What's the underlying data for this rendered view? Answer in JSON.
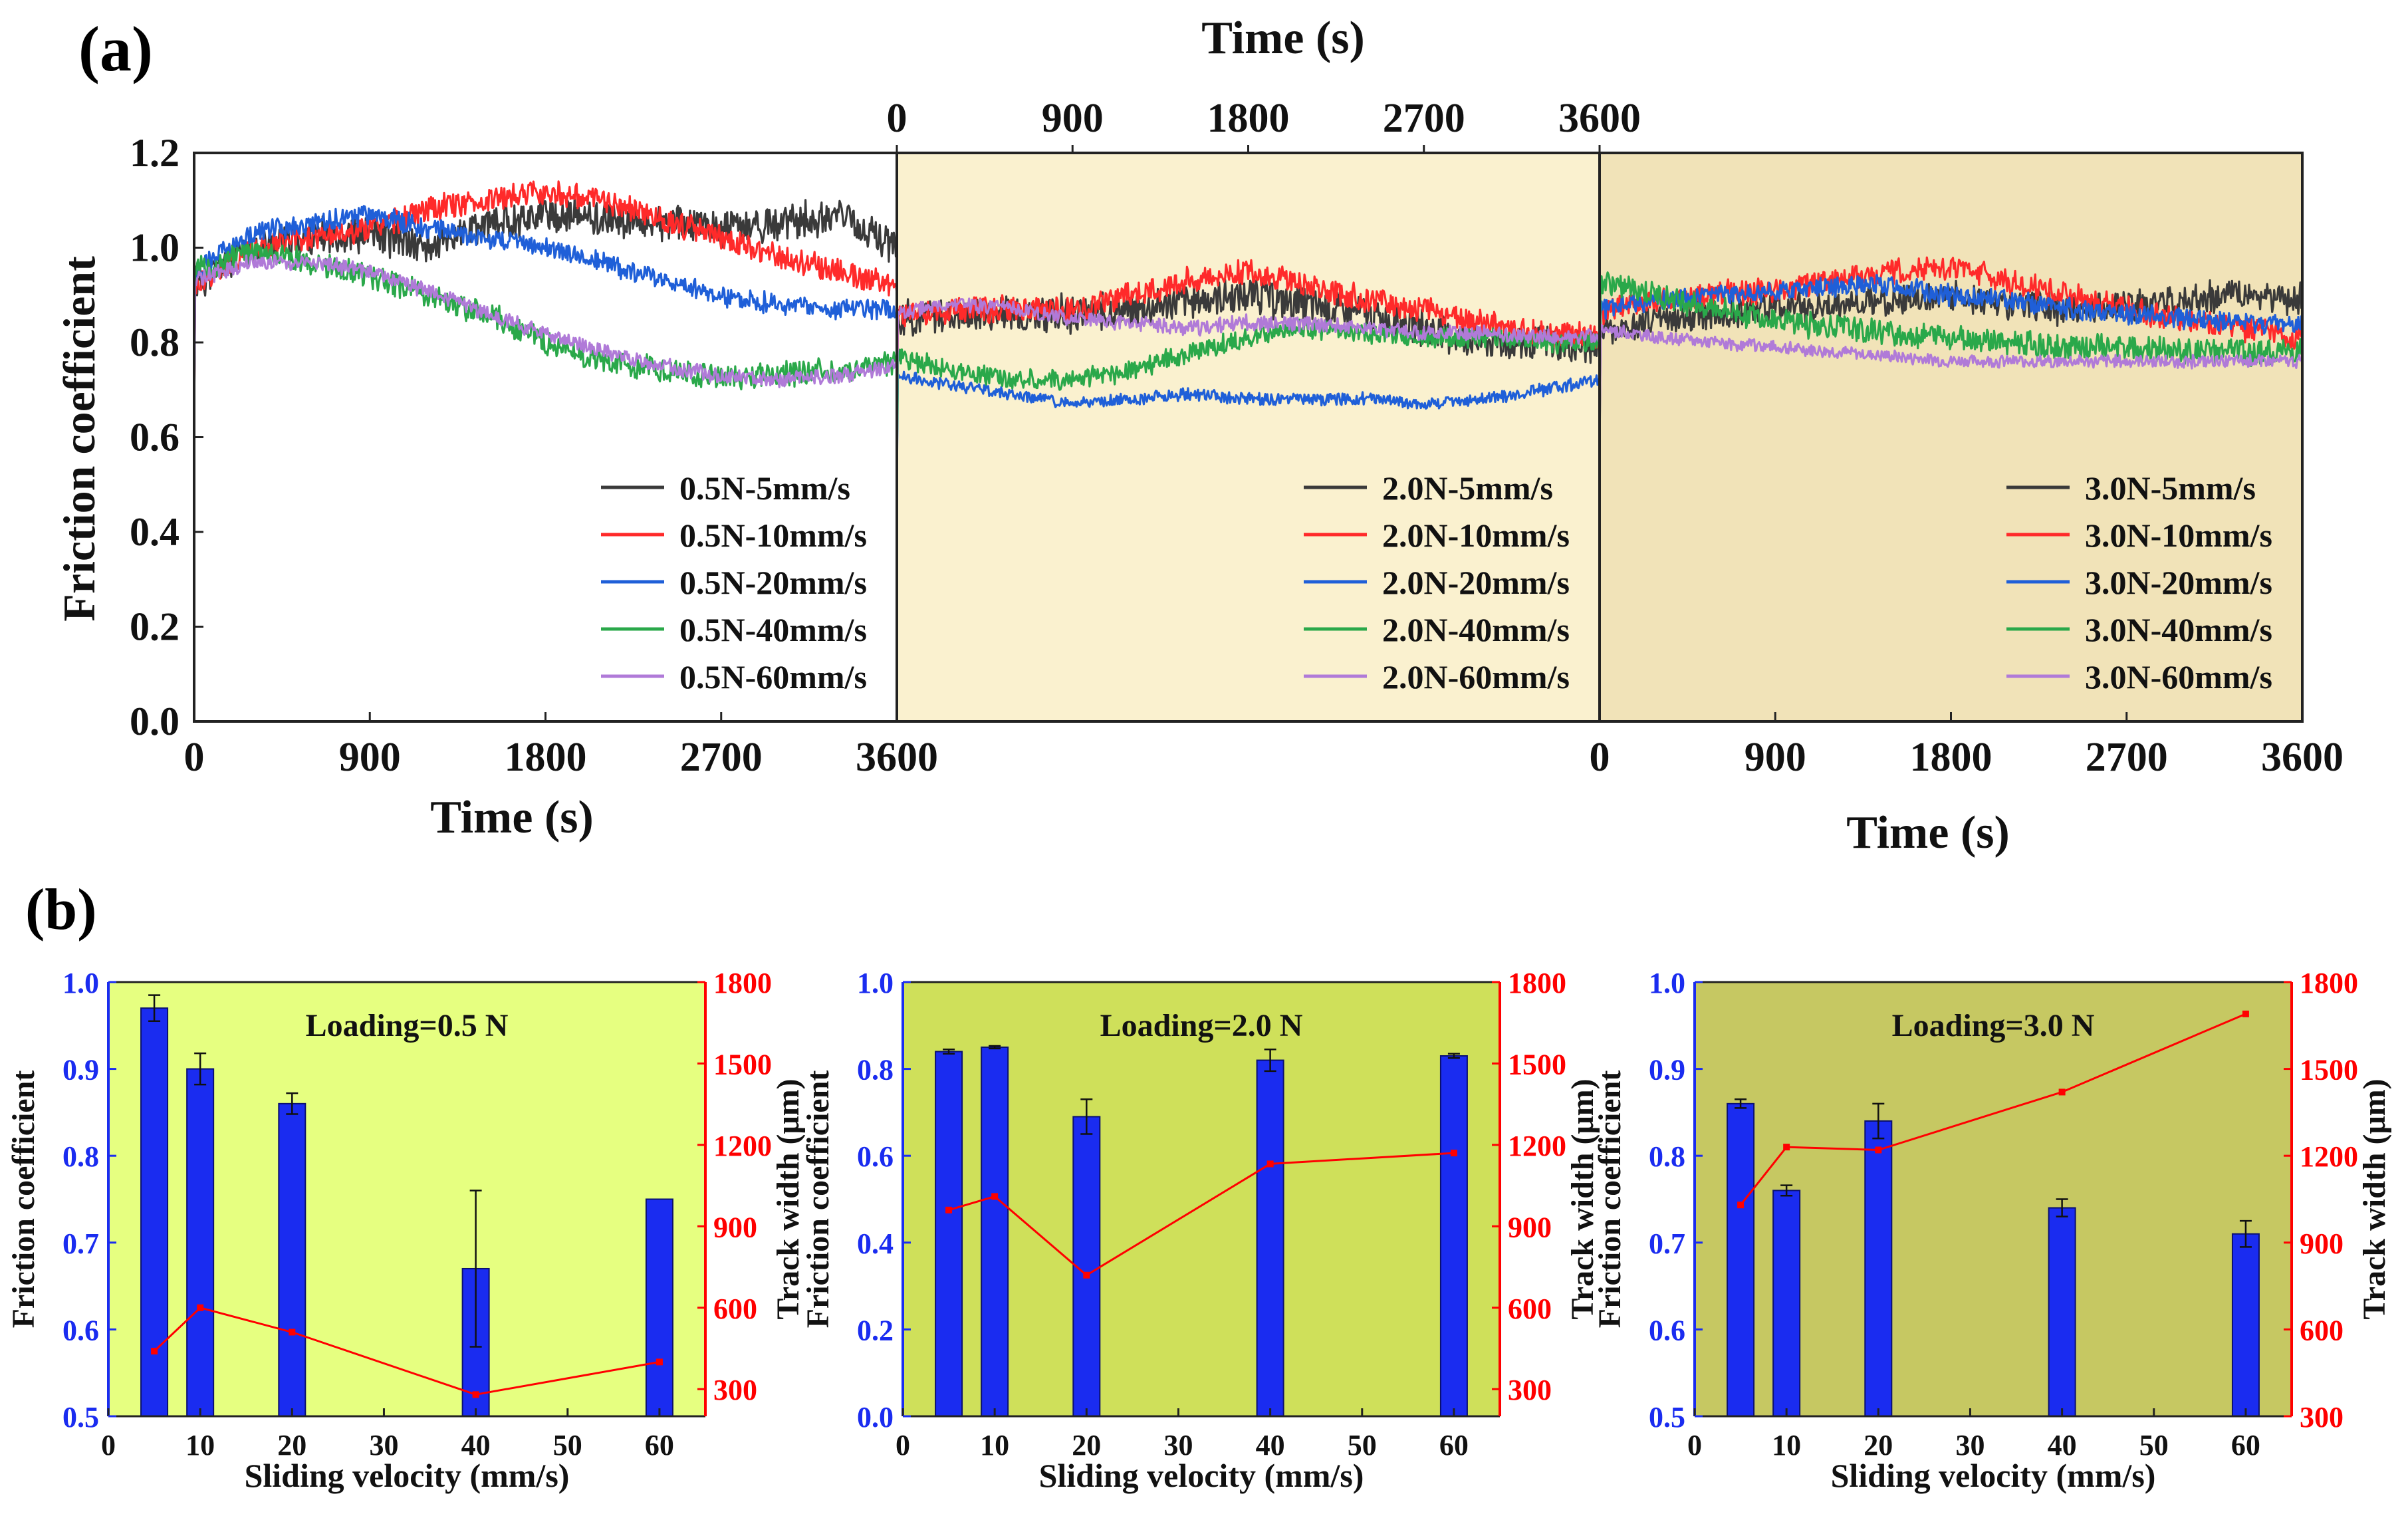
{
  "panel_labels": {
    "a": "(a)",
    "b": "(b)"
  },
  "colors": {
    "black": "#3a3a3a",
    "red": "#ff2a2a",
    "blue": "#1f5fd8",
    "green": "#2aa84a",
    "purple": "#b07ad8",
    "bar_blue": "#1a2cf0",
    "line_red": "#ff0000",
    "axis_blue": "#1a2cf0",
    "axis_red": "#ff0000",
    "a_bg2": "#faf1cf",
    "a_bg3": "#f1e3b8",
    "b_bg1": "#e6ff80",
    "b_bg2": "#cfe05a",
    "b_bg3": "#c6c862"
  },
  "chart_data": [
    {
      "id": "a1",
      "type": "line",
      "title": "",
      "xlabel": "Time (s)",
      "ylabel": "Friction coefficient",
      "xlim": [
        0,
        3600
      ],
      "ylim": [
        0,
        1.2
      ],
      "xticks": [
        "0",
        "900",
        "1800",
        "2700",
        "3600"
      ],
      "yticks": [
        "0.0",
        "0.2",
        "0.4",
        "0.6",
        "0.8",
        "1.0",
        "1.2"
      ],
      "legend_position": "bottom-right",
      "x": [
        0,
        300,
        600,
        900,
        1200,
        1500,
        1800,
        2100,
        2400,
        2700,
        3000,
        3300,
        3600
      ],
      "series": [
        {
          "name": "0.5N-5mm/s",
          "color": "black",
          "noise": 0.035,
          "values": [
            0.92,
            1.0,
            1.02,
            1.03,
            1.0,
            1.05,
            1.07,
            1.06,
            1.05,
            1.04,
            1.05,
            1.07,
            1.0
          ]
        },
        {
          "name": "0.5N-10mm/s",
          "color": "red",
          "noise": 0.025,
          "values": [
            0.92,
            1.0,
            1.02,
            1.04,
            1.08,
            1.1,
            1.12,
            1.1,
            1.06,
            1.02,
            0.98,
            0.95,
            0.92
          ]
        },
        {
          "name": "0.5N-20mm/s",
          "color": "blue",
          "noise": 0.02,
          "values": [
            0.95,
            1.03,
            1.05,
            1.07,
            1.04,
            1.02,
            1.0,
            0.97,
            0.93,
            0.9,
            0.88,
            0.87,
            0.87
          ]
        },
        {
          "name": "0.5N-40mm/s",
          "color": "green",
          "noise": 0.025,
          "values": [
            0.95,
            0.99,
            0.97,
            0.94,
            0.9,
            0.86,
            0.8,
            0.76,
            0.74,
            0.73,
            0.73,
            0.74,
            0.76
          ]
        },
        {
          "name": "0.5N-60mm/s",
          "color": "purple",
          "noise": 0.015,
          "values": [
            0.93,
            0.97,
            0.97,
            0.95,
            0.91,
            0.86,
            0.82,
            0.78,
            0.75,
            0.73,
            0.72,
            0.73,
            0.75
          ]
        }
      ]
    },
    {
      "id": "a2",
      "type": "line",
      "title": "",
      "xlabel": "Time (s)",
      "ylabel": "",
      "xlim": [
        0,
        3600
      ],
      "ylim": [
        0,
        1.2
      ],
      "xticks": [
        "0",
        "900",
        "1800",
        "2700",
        "3600"
      ],
      "legend_position": "bottom-right",
      "x": [
        0,
        300,
        600,
        900,
        1200,
        1500,
        1800,
        2100,
        2400,
        2700,
        3000,
        3300,
        3600
      ],
      "series": [
        {
          "name": "2.0N-5mm/s",
          "color": "black",
          "noise": 0.035,
          "values": [
            0.85,
            0.86,
            0.86,
            0.86,
            0.87,
            0.89,
            0.9,
            0.88,
            0.86,
            0.83,
            0.8,
            0.8,
            0.79
          ]
        },
        {
          "name": "2.0N-10mm/s",
          "color": "red",
          "noise": 0.025,
          "values": [
            0.86,
            0.87,
            0.87,
            0.87,
            0.9,
            0.93,
            0.95,
            0.92,
            0.89,
            0.87,
            0.84,
            0.82,
            0.81
          ]
        },
        {
          "name": "2.0N-20mm/s",
          "color": "blue",
          "noise": 0.012,
          "values": [
            0.73,
            0.71,
            0.69,
            0.67,
            0.68,
            0.69,
            0.68,
            0.68,
            0.68,
            0.67,
            0.68,
            0.7,
            0.72
          ]
        },
        {
          "name": "2.0N-40mm/s",
          "color": "green",
          "noise": 0.02,
          "values": [
            0.77,
            0.74,
            0.72,
            0.72,
            0.74,
            0.78,
            0.81,
            0.83,
            0.82,
            0.81,
            0.81,
            0.8,
            0.8
          ]
        },
        {
          "name": "2.0N-60mm/s",
          "color": "purple",
          "noise": 0.015,
          "values": [
            0.86,
            0.88,
            0.87,
            0.85,
            0.84,
            0.83,
            0.84,
            0.84,
            0.83,
            0.82,
            0.82,
            0.81,
            0.81
          ]
        }
      ]
    },
    {
      "id": "a3",
      "type": "line",
      "title": "",
      "xlabel": "Time (s)",
      "ylabel": "",
      "xlim": [
        0,
        3600
      ],
      "ylim": [
        0,
        1.2
      ],
      "xticks": [
        "0",
        "900",
        "1800",
        "2700",
        "3600"
      ],
      "legend_position": "bottom-right",
      "x": [
        0,
        300,
        600,
        900,
        1200,
        1500,
        1800,
        2100,
        2400,
        2700,
        3000,
        3300,
        3600
      ],
      "series": [
        {
          "name": "3.0N-5mm/s",
          "color": "black",
          "noise": 0.03,
          "values": [
            0.82,
            0.85,
            0.86,
            0.87,
            0.88,
            0.89,
            0.9,
            0.88,
            0.87,
            0.88,
            0.89,
            0.9,
            0.89
          ]
        },
        {
          "name": "3.0N-10mm/s",
          "color": "red",
          "noise": 0.025,
          "values": [
            0.86,
            0.89,
            0.9,
            0.91,
            0.93,
            0.95,
            0.96,
            0.93,
            0.9,
            0.87,
            0.85,
            0.83,
            0.81
          ]
        },
        {
          "name": "3.0N-20mm/s",
          "color": "blue",
          "noise": 0.02,
          "values": [
            0.87,
            0.89,
            0.9,
            0.91,
            0.92,
            0.92,
            0.9,
            0.89,
            0.87,
            0.86,
            0.85,
            0.84,
            0.84
          ]
        },
        {
          "name": "3.0N-40mm/s",
          "color": "green",
          "noise": 0.025,
          "values": [
            0.93,
            0.9,
            0.87,
            0.85,
            0.83,
            0.82,
            0.81,
            0.8,
            0.79,
            0.79,
            0.78,
            0.78,
            0.78
          ]
        },
        {
          "name": "3.0N-60mm/s",
          "color": "purple",
          "noise": 0.012,
          "values": [
            0.83,
            0.81,
            0.8,
            0.79,
            0.78,
            0.77,
            0.76,
            0.76,
            0.76,
            0.76,
            0.76,
            0.76,
            0.76
          ]
        }
      ]
    },
    {
      "id": "b1",
      "type": "bar",
      "title": "Loading=0.5 N",
      "xlabel": "Sliding velocity (mm/s)",
      "ylabel": "Friction coefficient",
      "y2label": "Track width (μm)",
      "xlim": [
        0,
        65
      ],
      "ylim": [
        0.5,
        1.0
      ],
      "y2lim": [
        200,
        1800
      ],
      "xticks": [
        "0",
        "10",
        "20",
        "30",
        "40",
        "50",
        "60"
      ],
      "yticks": [
        "0.5",
        "0.6",
        "0.7",
        "0.8",
        "0.9",
        "1.0"
      ],
      "y2ticks": [
        "300",
        "600",
        "900",
        "1200",
        "1500",
        "1800"
      ],
      "x": [
        5,
        10,
        20,
        40,
        60
      ],
      "values": [
        0.97,
        0.9,
        0.86,
        0.67,
        0.75
      ],
      "errors": [
        0.015,
        0.018,
        0.012,
        0.09,
        0.0
      ],
      "line_values": [
        440,
        600,
        510,
        280,
        400
      ]
    },
    {
      "id": "b2",
      "type": "bar",
      "title": "Loading=2.0 N",
      "xlabel": "Sliding velocity (mm/s)",
      "ylabel": "Friction coefficient",
      "y2label": "Track width (μm)",
      "xlim": [
        0,
        65
      ],
      "ylim": [
        0.0,
        1.0
      ],
      "y2lim": [
        200,
        1800
      ],
      "xticks": [
        "0",
        "10",
        "20",
        "30",
        "40",
        "50",
        "60"
      ],
      "yticks": [
        "0.0",
        "0.2",
        "0.4",
        "0.6",
        "0.8",
        "1.0"
      ],
      "y2ticks": [
        "300",
        "600",
        "900",
        "1200",
        "1500",
        "1800"
      ],
      "x": [
        5,
        10,
        20,
        40,
        60
      ],
      "values": [
        0.84,
        0.85,
        0.69,
        0.82,
        0.83
      ],
      "errors": [
        0.005,
        0.003,
        0.04,
        0.025,
        0.005
      ],
      "line_values": [
        960,
        1010,
        720,
        1130,
        1170
      ]
    },
    {
      "id": "b3",
      "type": "bar",
      "title": "Loading=3.0 N",
      "xlabel": "Sliding velocity (mm/s)",
      "ylabel": "Friction coefficient",
      "y2label": "Track width (μm)",
      "xlim": [
        0,
        65
      ],
      "ylim": [
        0.5,
        1.0
      ],
      "y2lim": [
        300,
        1800
      ],
      "xticks": [
        "0",
        "10",
        "20",
        "30",
        "40",
        "50",
        "60"
      ],
      "yticks": [
        "0.5",
        "0.6",
        "0.7",
        "0.8",
        "0.9",
        "1.0"
      ],
      "y2ticks": [
        "300",
        "600",
        "900",
        "1200",
        "1500",
        "1800"
      ],
      "x": [
        5,
        10,
        20,
        40,
        60
      ],
      "values": [
        0.86,
        0.76,
        0.84,
        0.74,
        0.71
      ],
      "errors": [
        0.005,
        0.006,
        0.02,
        0.01,
        0.015
      ],
      "line_values": [
        1030,
        1230,
        1220,
        1420,
        1690
      ]
    }
  ]
}
